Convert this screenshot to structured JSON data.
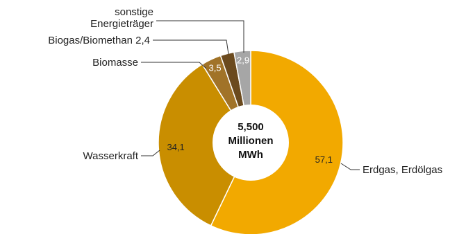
{
  "chart_data": {
    "type": "pie",
    "variant": "donut",
    "center_label": [
      "5,500",
      "Millionen",
      "MWh"
    ],
    "slices": [
      {
        "label": "Erdgas, Erdölgas",
        "value": 57.1,
        "value_label": "57,1",
        "color": "#f2a900"
      },
      {
        "label": "Wasserkraft",
        "value": 34.1,
        "value_label": "34,1",
        "color": "#c98e00"
      },
      {
        "label": "Biomasse",
        "value": 3.5,
        "value_label": "3,5",
        "color": "#a17328"
      },
      {
        "label": "Biogas/Biomethan 2,4",
        "value": 2.4,
        "value_label": "",
        "color": "#6b4a1e"
      },
      {
        "label": [
          "sonstige",
          "Energieträger"
        ],
        "value": 2.9,
        "value_label": "2,9",
        "color": "#a6a6a6"
      }
    ],
    "legend": "none"
  }
}
